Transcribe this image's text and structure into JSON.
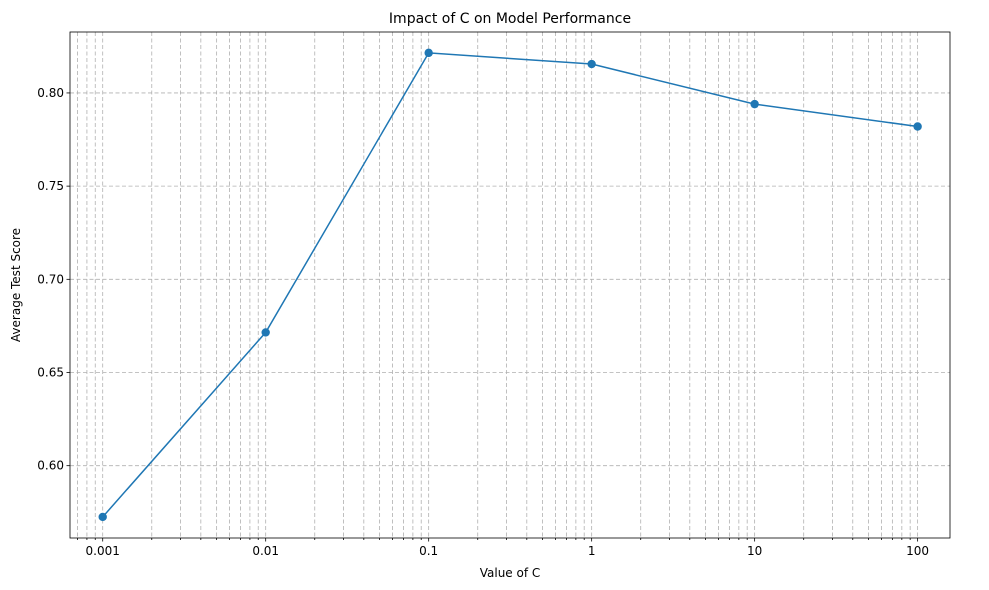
{
  "chart_data": {
    "type": "line",
    "title": "Impact of C on Model Performance",
    "xlabel": "Value of C",
    "ylabel": "Average Test Score",
    "x_scale": "log",
    "x": [
      0.001,
      0.01,
      0.1,
      1,
      10,
      100
    ],
    "x_tick_labels": [
      "0.001",
      "0.01",
      "0.1",
      "1",
      "10",
      "100"
    ],
    "y_ticks": [
      0.6,
      0.65,
      0.7,
      0.75,
      0.8
    ],
    "y_tick_labels": [
      "0.60",
      "0.65",
      "0.70",
      "0.75",
      "0.80"
    ],
    "xlim": [
      0.00063,
      158
    ],
    "ylim": [
      0.5612,
      0.8327
    ],
    "grid": "both (major and minor), dashed",
    "marker": "circle",
    "line_color": "#1f77b4",
    "series": [
      {
        "values": [
          0.5725,
          0.6715,
          0.8215,
          0.8155,
          0.794,
          0.782
        ]
      }
    ]
  }
}
